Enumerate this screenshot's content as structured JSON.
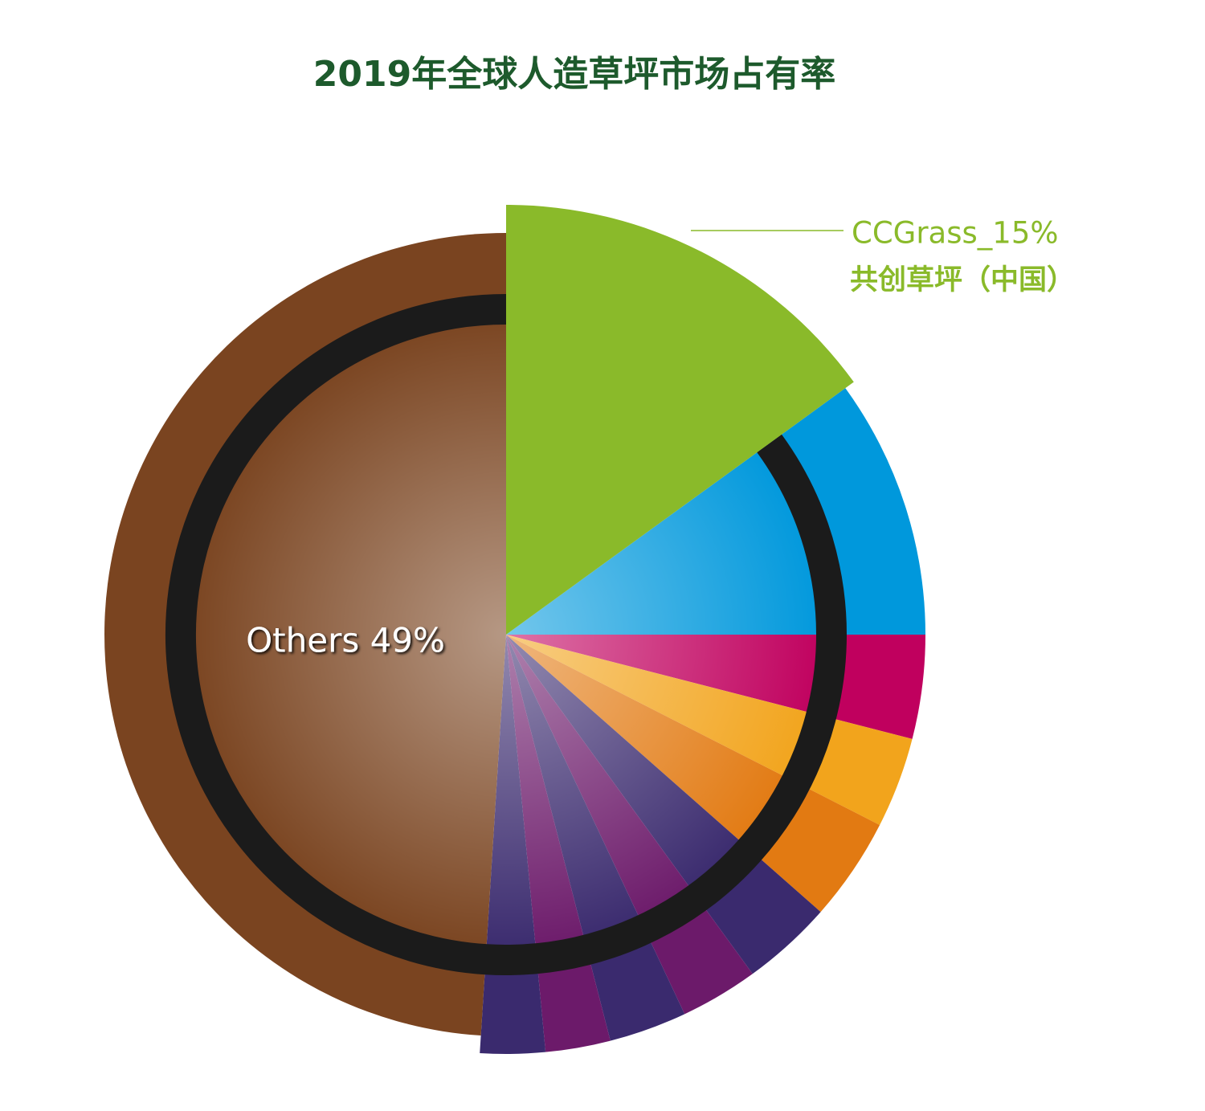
{
  "chart_data": {
    "type": "pie",
    "title": "2019年全球人造草坪市场占有率",
    "categories": [
      "CCGrass_15%",
      null,
      null,
      null,
      null,
      null,
      null,
      null,
      null,
      null,
      "Others 49%"
    ],
    "values": [
      15,
      10,
      4,
      3.5,
      4,
      3.5,
      3,
      3,
      2.5,
      2.5,
      49
    ],
    "colors": [
      "#8aba2a",
      "#0098dc",
      "#c0005e",
      "#f2a41c",
      "#e27a12",
      "#3a2a6e",
      "#6c1a6a",
      "#3a2a6e",
      "#6c1a6a",
      "#3a2a6e",
      "#7a4420"
    ],
    "annotation": "共创草坪（中国）"
  }
}
